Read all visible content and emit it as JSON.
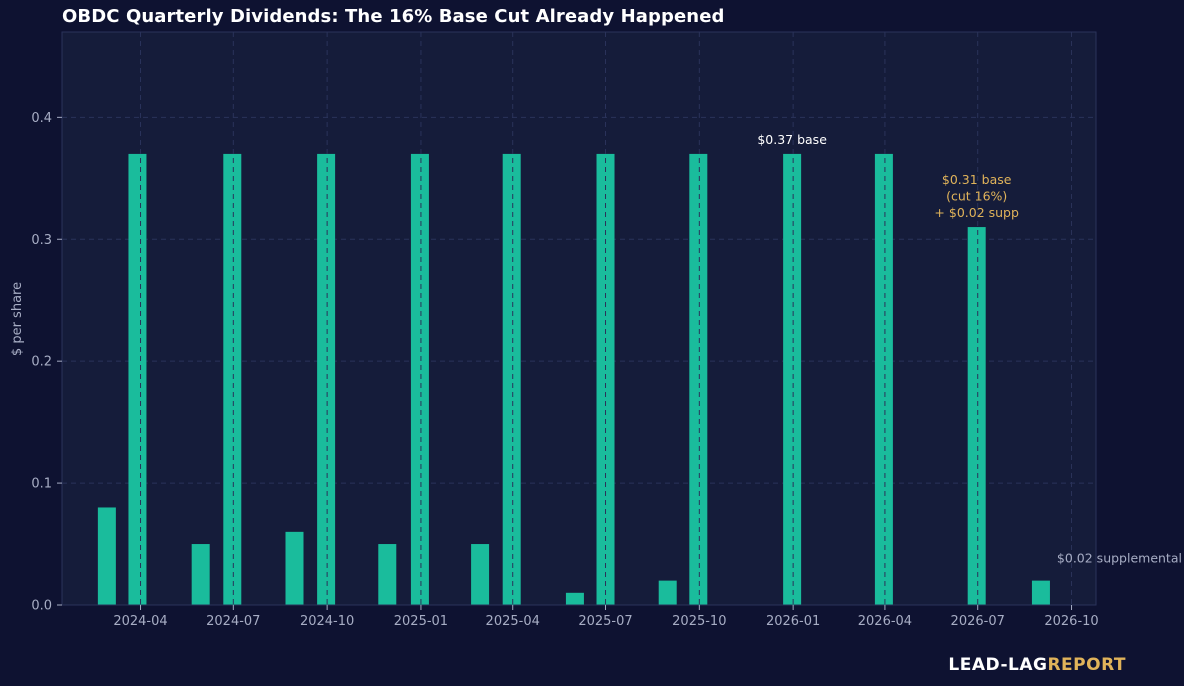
{
  "colors": {
    "background": "#0e1231",
    "plot_background": "#151c3a",
    "bar": "#1abc9c",
    "grid": "#2a335a",
    "annotation_white": "#ffffff",
    "annotation_gold": "#e0b35a",
    "annotation_gray": "#a7adc4"
  },
  "brand": {
    "part1": "LEAD-LAG",
    "part2": "REPORT"
  },
  "chart_data": {
    "type": "bar",
    "title": "OBDC Quarterly Dividends: The 16% Base Cut Already Happened",
    "xlabel": "",
    "ylabel": "$ per share",
    "ylim": [
      0,
      0.47
    ],
    "xlim": [
      "2024-01-15",
      "2026-10-25"
    ],
    "grid": true,
    "y_ticks": [
      {
        "value": 0.0,
        "label": "0.0"
      },
      {
        "value": 0.1,
        "label": "0.1"
      },
      {
        "value": 0.2,
        "label": "0.2"
      },
      {
        "value": 0.3,
        "label": "0.3"
      },
      {
        "value": 0.4,
        "label": "0.4"
      }
    ],
    "x_ticks": [
      {
        "date": "2024-04-01",
        "label": "2024-04"
      },
      {
        "date": "2024-07-01",
        "label": "2024-07"
      },
      {
        "date": "2024-10-01",
        "label": "2024-10"
      },
      {
        "date": "2025-01-01",
        "label": "2025-01"
      },
      {
        "date": "2025-04-01",
        "label": "2025-04"
      },
      {
        "date": "2025-07-01",
        "label": "2025-07"
      },
      {
        "date": "2025-10-01",
        "label": "2025-10"
      },
      {
        "date": "2026-01-01",
        "label": "2026-01"
      },
      {
        "date": "2026-04-01",
        "label": "2026-04"
      },
      {
        "date": "2026-07-01",
        "label": "2026-07"
      },
      {
        "date": "2026-10-01",
        "label": "2026-10"
      }
    ],
    "bars": [
      {
        "date": "2024-02-28",
        "value": 0.08
      },
      {
        "date": "2024-03-29",
        "value": 0.37
      },
      {
        "date": "2024-05-30",
        "value": 0.05
      },
      {
        "date": "2024-06-30",
        "value": 0.37
      },
      {
        "date": "2024-08-30",
        "value": 0.06
      },
      {
        "date": "2024-09-30",
        "value": 0.37
      },
      {
        "date": "2024-11-29",
        "value": 0.05
      },
      {
        "date": "2024-12-31",
        "value": 0.37
      },
      {
        "date": "2025-02-28",
        "value": 0.05
      },
      {
        "date": "2025-03-31",
        "value": 0.37
      },
      {
        "date": "2025-06-01",
        "value": 0.01
      },
      {
        "date": "2025-07-01",
        "value": 0.37
      },
      {
        "date": "2025-08-31",
        "value": 0.02
      },
      {
        "date": "2025-09-30",
        "value": 0.37
      },
      {
        "date": "2025-12-31",
        "value": 0.37
      },
      {
        "date": "2026-03-31",
        "value": 0.37
      },
      {
        "date": "2026-06-30",
        "value": 0.31
      },
      {
        "date": "2026-09-01",
        "value": 0.02
      }
    ],
    "annotations": [
      {
        "lines": [
          "$0.37 base"
        ],
        "date": "2025-12-31",
        "value": 0.37,
        "color": "white",
        "anchor": "middle"
      },
      {
        "lines": [
          "$0.31 base",
          "(cut 16%)",
          "+ $0.02 supp"
        ],
        "date": "2026-06-30",
        "value": 0.31,
        "color": "gold",
        "anchor": "middle"
      },
      {
        "lines": [
          "$0.02 supplemental"
        ],
        "date": "2026-09-01",
        "value": 0.02,
        "color": "gray",
        "anchor": "start"
      }
    ]
  }
}
